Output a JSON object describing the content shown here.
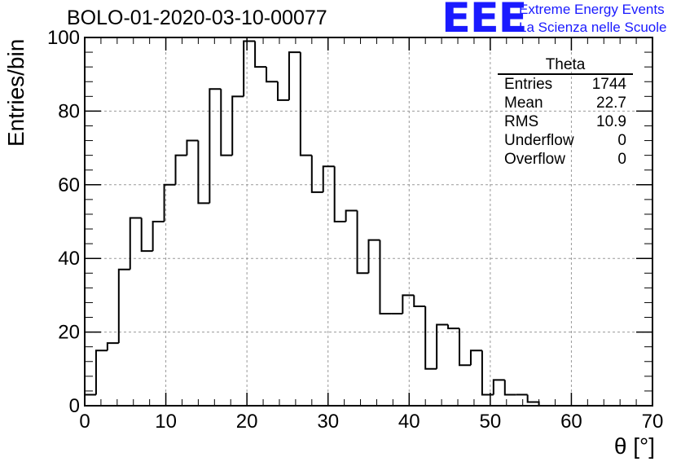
{
  "header": {
    "run_title": "BOLO-01-2020-03-10-00077"
  },
  "logo": {
    "mark": "EEE",
    "line1": "Extreme Energy Events",
    "line2": "La Scienza nelle Scuole",
    "color": "#1a1aff"
  },
  "stats": {
    "title": "Theta",
    "rows": [
      {
        "label": "Entries",
        "value": "1744"
      },
      {
        "label": "Mean",
        "value": "22.7"
      },
      {
        "label": "RMS",
        "value": "10.9"
      },
      {
        "label": "Underflow",
        "value": "0"
      },
      {
        "label": "Overflow",
        "value": "0"
      }
    ]
  },
  "chart_data": {
    "type": "bar",
    "histogram": true,
    "title": "BOLO-01-2020-03-10-00077",
    "xlabel": "θ [°]",
    "ylabel": "Entries/bin",
    "xlim": [
      0,
      70
    ],
    "ylim": [
      0,
      100
    ],
    "xticks": [
      0,
      10,
      20,
      30,
      40,
      50,
      60,
      70
    ],
    "yticks": [
      0,
      20,
      40,
      60,
      80,
      100
    ],
    "grid": true,
    "bin_edges": [
      0,
      1.4,
      2.8,
      4.2,
      5.6,
      7.0,
      8.4,
      9.8,
      11.2,
      12.6,
      14.0,
      15.4,
      16.8,
      18.2,
      19.6,
      21.0,
      22.4,
      23.8,
      25.2,
      26.6,
      28.0,
      29.4,
      30.8,
      32.2,
      33.6,
      35.0,
      36.4,
      37.8,
      39.2,
      40.6,
      42.0,
      43.4,
      44.8,
      46.2,
      47.6,
      49.0,
      50.4,
      51.8,
      53.2,
      54.6,
      56.0
    ],
    "values": [
      3,
      15,
      17,
      37,
      51,
      42,
      50,
      60,
      68,
      72,
      55,
      86,
      68,
      84,
      99,
      92,
      88,
      83,
      96,
      68,
      58,
      65,
      50,
      53,
      36,
      45,
      25,
      25,
      30,
      27,
      10,
      22,
      21,
      11,
      15,
      3,
      7,
      3,
      3,
      1
    ],
    "colors": {
      "line": "#000000",
      "grid": "#999999"
    }
  }
}
